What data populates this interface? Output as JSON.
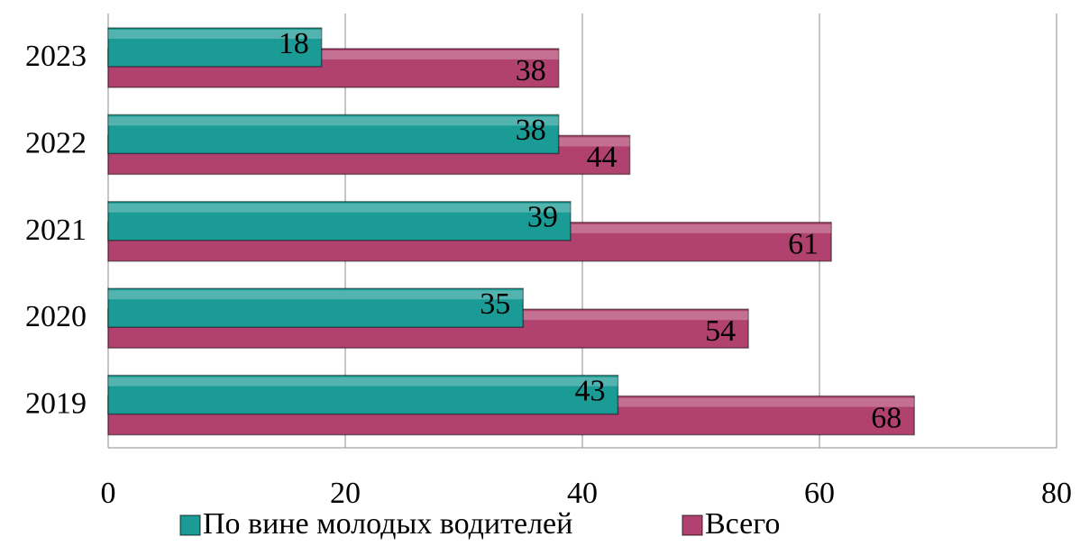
{
  "chart_data": {
    "type": "hbar",
    "categories": [
      "2019",
      "2020",
      "2021",
      "2022",
      "2023"
    ],
    "series": [
      {
        "name": "По вине молодых водителей",
        "color": "#1a9b95",
        "values": [
          43,
          35,
          39,
          38,
          18
        ]
      },
      {
        "name": "Всего",
        "color": "#b1416f",
        "values": [
          68,
          54,
          61,
          44,
          38
        ]
      }
    ],
    "xlim": [
      0,
      80
    ],
    "xticks": [
      0,
      20,
      40,
      60,
      80
    ],
    "grid": true,
    "legend": "bottom"
  }
}
